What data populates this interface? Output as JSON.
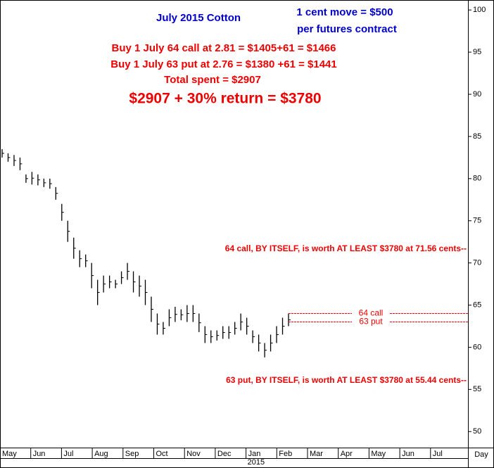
{
  "chart_data": {
    "type": "ohlc",
    "title": "July 2015 Cotton",
    "annotations": [
      "1 cent move = $500",
      "per futures contract",
      "Buy 1 July 64 call at 2.81 = $1405+61 = $1466",
      "Buy 1 July 63 put at 2.76 = $1380 +61 = $1441",
      "Total spent = $2907",
      "$2907 + 30% return = $3780",
      "64 call, BY ITSELF, is worth AT LEAST $3780 at 71.56 cents--",
      "63 put, BY ITSELF, is worth AT LEAST $3780 at 55.44 cents--"
    ],
    "categories": [
      "May",
      "Jun",
      "Jul",
      "Aug",
      "Sep",
      "Oct",
      "Nov",
      "Dec",
      "Jan",
      "Feb",
      "Mar",
      "Apr",
      "May",
      "Jun",
      "Jul"
    ],
    "year_label": "2015",
    "x_unit_label": "Day",
    "series": [
      {
        "name": "July 2015 Cotton",
        "color": "#000000",
        "high": [
          83.5,
          83,
          82.8,
          82.5,
          80.5,
          80.8,
          80.5,
          80,
          80,
          79,
          77,
          75,
          73,
          71.5,
          71,
          70,
          68,
          68.5,
          68.5,
          68,
          69,
          70,
          69,
          68.5,
          68,
          66,
          64,
          63,
          64.5,
          64.8,
          64.5,
          65,
          65,
          64,
          62.5,
          62,
          62,
          62.5,
          62.5,
          63,
          64,
          63.5,
          62,
          61.5,
          60.5,
          61.5,
          62.5,
          63.5,
          64
        ],
        "low": [
          82.5,
          82,
          81.5,
          81,
          79.5,
          79.3,
          79.2,
          79,
          78.8,
          77.5,
          75,
          72.5,
          70.5,
          69.5,
          69.5,
          67,
          65,
          66.5,
          67,
          67,
          67.5,
          68,
          66.5,
          66,
          65,
          63,
          61.5,
          61.5,
          62.5,
          63,
          63.2,
          63,
          63,
          61.8,
          60.5,
          60.5,
          60.8,
          61,
          61,
          61.5,
          62,
          61.5,
          60.5,
          59.5,
          58.8,
          59.5,
          60.5,
          61.5,
          62.5
        ]
      }
    ],
    "levels": [
      {
        "label": "64 call",
        "value": 64,
        "color": "#ff0000"
      },
      {
        "label": "63 put",
        "value": 63,
        "color": "#ff0000"
      }
    ],
    "ylim": [
      48.1,
      101.1
    ],
    "yticks": [
      50,
      55,
      60,
      65,
      70,
      75,
      80,
      85,
      90,
      95,
      100
    ]
  }
}
